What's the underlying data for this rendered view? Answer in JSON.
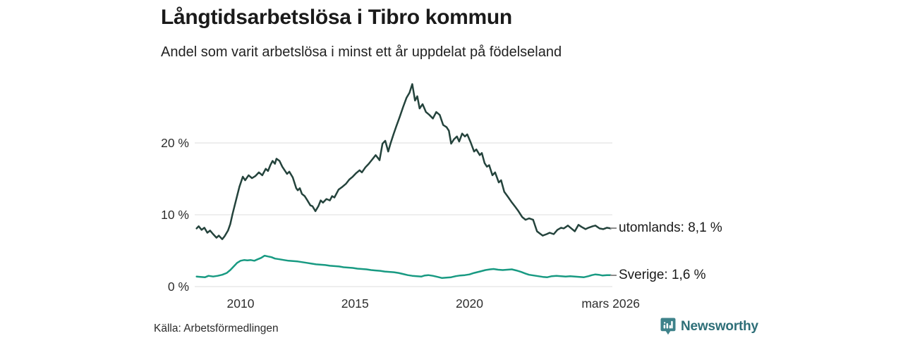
{
  "header": {
    "title": "Långtidsarbetslösa i Tibro kommun",
    "subtitle": "Andel som varit arbetslösa i minst ett år uppdelat på födelseland"
  },
  "footer": {
    "source": "Källa: Arbetsförmedlingen",
    "brand": "Newsworthy"
  },
  "colors": {
    "series_utomlands": "#24433c",
    "series_sverige": "#189a82",
    "gridline": "#dcdcdc",
    "axis_text": "#2e2e2e",
    "title_text": "#1a1a1a",
    "label_dash": "#8a8a8a",
    "brand_teal": "#2e6f78",
    "brand_icon": "#3e828a"
  },
  "chart_data": {
    "type": "line",
    "title": "Långtidsarbetslösa i Tibro kommun",
    "subtitle": "Andel som varit arbetslösa i minst ett år uppdelat på födelseland",
    "unit": "%",
    "grid": true,
    "legend_position": "end-labels-right",
    "x_range": [
      2008.08,
      2026.17
    ],
    "ylim": [
      0,
      29
    ],
    "x_axis": {
      "ticks": [
        {
          "label": "2010",
          "year": 2010
        },
        {
          "label": "2015",
          "year": 2015
        },
        {
          "label": "2020",
          "year": 2020
        },
        {
          "label": "mars 2026",
          "year": 2026.17
        }
      ]
    },
    "y_axis": {
      "ticks": [
        {
          "label": "0 %",
          "value": 0
        },
        {
          "label": "10 %",
          "value": 10
        },
        {
          "label": "20 %",
          "value": 20
        }
      ]
    },
    "series": [
      {
        "name": "utomlands",
        "end_label": "utomlands: 8,1 %",
        "last_value": 8.1,
        "color": "#24433c",
        "points": [
          [
            2008.08,
            8.1
          ],
          [
            2008.17,
            8.4
          ],
          [
            2008.3,
            7.9
          ],
          [
            2008.42,
            8.2
          ],
          [
            2008.55,
            7.5
          ],
          [
            2008.67,
            7.8
          ],
          [
            2008.8,
            7.3
          ],
          [
            2008.95,
            6.8
          ],
          [
            2009.05,
            7.1
          ],
          [
            2009.2,
            6.6
          ],
          [
            2009.3,
            7.0
          ],
          [
            2009.45,
            7.8
          ],
          [
            2009.55,
            8.7
          ],
          [
            2009.65,
            10.1
          ],
          [
            2009.8,
            12.0
          ],
          [
            2009.95,
            13.9
          ],
          [
            2010.1,
            15.3
          ],
          [
            2010.2,
            14.8
          ],
          [
            2010.35,
            15.5
          ],
          [
            2010.5,
            15.1
          ],
          [
            2010.65,
            15.4
          ],
          [
            2010.8,
            15.9
          ],
          [
            2010.95,
            15.5
          ],
          [
            2011.1,
            16.4
          ],
          [
            2011.2,
            16.1
          ],
          [
            2011.3,
            16.9
          ],
          [
            2011.4,
            17.5
          ],
          [
            2011.5,
            17.1
          ],
          [
            2011.57,
            17.8
          ],
          [
            2011.7,
            17.5
          ],
          [
            2011.82,
            16.7
          ],
          [
            2012.03,
            15.7
          ],
          [
            2012.13,
            16.0
          ],
          [
            2012.28,
            15.2
          ],
          [
            2012.43,
            13.7
          ],
          [
            2012.5,
            13.4
          ],
          [
            2012.59,
            13.7
          ],
          [
            2012.68,
            12.9
          ],
          [
            2012.8,
            12.6
          ],
          [
            2012.9,
            12.1
          ],
          [
            2013.05,
            11.3
          ],
          [
            2013.14,
            11.2
          ],
          [
            2013.27,
            10.5
          ],
          [
            2013.4,
            11.2
          ],
          [
            2013.5,
            12.0
          ],
          [
            2013.6,
            11.7
          ],
          [
            2013.75,
            12.2
          ],
          [
            2013.9,
            12.0
          ],
          [
            2014.0,
            12.6
          ],
          [
            2014.1,
            12.4
          ],
          [
            2014.28,
            13.5
          ],
          [
            2014.45,
            13.9
          ],
          [
            2014.6,
            14.3
          ],
          [
            2014.75,
            14.9
          ],
          [
            2014.9,
            15.3
          ],
          [
            2015.05,
            15.8
          ],
          [
            2015.2,
            16.2
          ],
          [
            2015.3,
            15.9
          ],
          [
            2015.45,
            16.6
          ],
          [
            2015.6,
            17.1
          ],
          [
            2015.75,
            17.7
          ],
          [
            2015.9,
            18.3
          ],
          [
            2016.0,
            17.9
          ],
          [
            2016.07,
            17.6
          ],
          [
            2016.2,
            19.9
          ],
          [
            2016.32,
            20.3
          ],
          [
            2016.45,
            18.8
          ],
          [
            2016.55,
            19.9
          ],
          [
            2016.68,
            21.2
          ],
          [
            2016.8,
            22.3
          ],
          [
            2016.95,
            23.6
          ],
          [
            2017.1,
            25.0
          ],
          [
            2017.25,
            26.3
          ],
          [
            2017.38,
            27.0
          ],
          [
            2017.5,
            28.2
          ],
          [
            2017.62,
            25.9
          ],
          [
            2017.72,
            26.5
          ],
          [
            2017.82,
            24.8
          ],
          [
            2017.95,
            25.4
          ],
          [
            2018.1,
            24.3
          ],
          [
            2018.25,
            23.9
          ],
          [
            2018.4,
            23.4
          ],
          [
            2018.55,
            24.3
          ],
          [
            2018.7,
            23.9
          ],
          [
            2018.85,
            22.5
          ],
          [
            2019.0,
            22.2
          ],
          [
            2019.1,
            21.7
          ],
          [
            2019.2,
            19.9
          ],
          [
            2019.32,
            20.5
          ],
          [
            2019.45,
            20.9
          ],
          [
            2019.55,
            20.2
          ],
          [
            2019.68,
            21.3
          ],
          [
            2019.8,
            20.9
          ],
          [
            2019.9,
            21.2
          ],
          [
            2020.05,
            20.1
          ],
          [
            2020.2,
            18.8
          ],
          [
            2020.3,
            19.1
          ],
          [
            2020.45,
            18.3
          ],
          [
            2020.54,
            18.6
          ],
          [
            2020.66,
            17.2
          ],
          [
            2020.76,
            16.7
          ],
          [
            2020.86,
            16.9
          ],
          [
            2021.0,
            15.5
          ],
          [
            2021.12,
            15.9
          ],
          [
            2021.28,
            14.5
          ],
          [
            2021.38,
            14.8
          ],
          [
            2021.52,
            13.2
          ],
          [
            2021.68,
            12.5
          ],
          [
            2021.83,
            11.8
          ],
          [
            2022.0,
            11.1
          ],
          [
            2022.14,
            10.5
          ],
          [
            2022.3,
            9.7
          ],
          [
            2022.45,
            9.3
          ],
          [
            2022.6,
            9.5
          ],
          [
            2022.78,
            9.3
          ],
          [
            2022.95,
            7.7
          ],
          [
            2023.07,
            7.4
          ],
          [
            2023.2,
            7.1
          ],
          [
            2023.37,
            7.3
          ],
          [
            2023.5,
            7.5
          ],
          [
            2023.68,
            7.3
          ],
          [
            2023.84,
            7.9
          ],
          [
            2024.0,
            8.2
          ],
          [
            2024.12,
            8.1
          ],
          [
            2024.3,
            8.5
          ],
          [
            2024.45,
            8.1
          ],
          [
            2024.6,
            7.7
          ],
          [
            2024.76,
            8.6
          ],
          [
            2024.9,
            8.3
          ],
          [
            2025.07,
            8.0
          ],
          [
            2025.2,
            8.2
          ],
          [
            2025.38,
            8.4
          ],
          [
            2025.5,
            8.5
          ],
          [
            2025.68,
            8.1
          ],
          [
            2025.84,
            8.0
          ],
          [
            2026.0,
            8.2
          ],
          [
            2026.17,
            8.1
          ]
        ]
      },
      {
        "name": "sverige",
        "end_label": "Sverige: 1,6 %",
        "last_value": 1.6,
        "color": "#189a82",
        "points": [
          [
            2008.08,
            1.4
          ],
          [
            2008.25,
            1.35
          ],
          [
            2008.45,
            1.3
          ],
          [
            2008.6,
            1.5
          ],
          [
            2008.8,
            1.4
          ],
          [
            2009.0,
            1.5
          ],
          [
            2009.2,
            1.65
          ],
          [
            2009.4,
            1.9
          ],
          [
            2009.55,
            2.3
          ],
          [
            2009.7,
            2.8
          ],
          [
            2009.85,
            3.3
          ],
          [
            2010.0,
            3.6
          ],
          [
            2010.15,
            3.7
          ],
          [
            2010.3,
            3.65
          ],
          [
            2010.45,
            3.7
          ],
          [
            2010.6,
            3.6
          ],
          [
            2010.75,
            3.8
          ],
          [
            2010.9,
            4.0
          ],
          [
            2011.05,
            4.3
          ],
          [
            2011.2,
            4.2
          ],
          [
            2011.35,
            4.1
          ],
          [
            2011.5,
            3.9
          ],
          [
            2011.7,
            3.8
          ],
          [
            2011.9,
            3.7
          ],
          [
            2012.1,
            3.6
          ],
          [
            2012.3,
            3.55
          ],
          [
            2012.5,
            3.5
          ],
          [
            2012.7,
            3.4
          ],
          [
            2012.9,
            3.3
          ],
          [
            2013.1,
            3.2
          ],
          [
            2013.3,
            3.1
          ],
          [
            2013.5,
            3.05
          ],
          [
            2013.7,
            3.0
          ],
          [
            2013.9,
            2.9
          ],
          [
            2014.1,
            2.85
          ],
          [
            2014.3,
            2.8
          ],
          [
            2014.5,
            2.7
          ],
          [
            2014.7,
            2.65
          ],
          [
            2014.9,
            2.6
          ],
          [
            2015.1,
            2.5
          ],
          [
            2015.3,
            2.45
          ],
          [
            2015.5,
            2.4
          ],
          [
            2015.7,
            2.3
          ],
          [
            2015.9,
            2.25
          ],
          [
            2016.1,
            2.2
          ],
          [
            2016.3,
            2.1
          ],
          [
            2016.5,
            2.05
          ],
          [
            2016.7,
            2.0
          ],
          [
            2016.9,
            1.9
          ],
          [
            2017.1,
            1.75
          ],
          [
            2017.3,
            1.6
          ],
          [
            2017.5,
            1.5
          ],
          [
            2017.7,
            1.45
          ],
          [
            2017.9,
            1.4
          ],
          [
            2018.05,
            1.55
          ],
          [
            2018.2,
            1.6
          ],
          [
            2018.4,
            1.5
          ],
          [
            2018.6,
            1.35
          ],
          [
            2018.8,
            1.2
          ],
          [
            2019.0,
            1.25
          ],
          [
            2019.2,
            1.3
          ],
          [
            2019.4,
            1.45
          ],
          [
            2019.6,
            1.55
          ],
          [
            2019.8,
            1.6
          ],
          [
            2020.0,
            1.7
          ],
          [
            2020.2,
            1.9
          ],
          [
            2020.45,
            2.1
          ],
          [
            2020.7,
            2.3
          ],
          [
            2020.9,
            2.4
          ],
          [
            2021.05,
            2.45
          ],
          [
            2021.25,
            2.35
          ],
          [
            2021.45,
            2.3
          ],
          [
            2021.65,
            2.35
          ],
          [
            2021.85,
            2.4
          ],
          [
            2022.05,
            2.25
          ],
          [
            2022.25,
            2.05
          ],
          [
            2022.45,
            1.8
          ],
          [
            2022.6,
            1.65
          ],
          [
            2022.8,
            1.55
          ],
          [
            2023.0,
            1.45
          ],
          [
            2023.2,
            1.35
          ],
          [
            2023.4,
            1.3
          ],
          [
            2023.6,
            1.45
          ],
          [
            2023.8,
            1.5
          ],
          [
            2024.0,
            1.45
          ],
          [
            2024.2,
            1.4
          ],
          [
            2024.4,
            1.45
          ],
          [
            2024.6,
            1.4
          ],
          [
            2024.8,
            1.35
          ],
          [
            2025.0,
            1.3
          ],
          [
            2025.2,
            1.45
          ],
          [
            2025.35,
            1.6
          ],
          [
            2025.5,
            1.7
          ],
          [
            2025.65,
            1.65
          ],
          [
            2025.8,
            1.55
          ],
          [
            2026.0,
            1.6
          ],
          [
            2026.17,
            1.6
          ]
        ]
      }
    ]
  }
}
